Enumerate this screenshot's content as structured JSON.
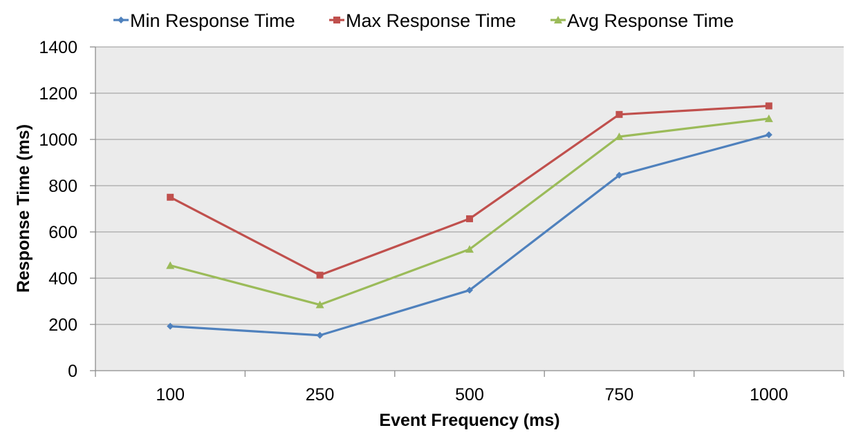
{
  "chart_data": {
    "type": "line",
    "title": "",
    "xlabel": "Event Frequency (ms)",
    "ylabel": "Response Time (ms)",
    "categories": [
      "100",
      "250",
      "500",
      "750",
      "1000"
    ],
    "ylim": [
      0,
      1400
    ],
    "yticks": [
      "0",
      "200",
      "400",
      "600",
      "800",
      "1000",
      "1200",
      "1400"
    ],
    "grid": "horizontal",
    "legend_position": "top",
    "plot_background": "#ebebeb",
    "series": [
      {
        "name": "Min Response Time",
        "color": "#4f81bd",
        "marker": "diamond",
        "values": [
          192,
          153,
          348,
          845,
          1020
        ]
      },
      {
        "name": "Max Response Time",
        "color": "#c0504d",
        "marker": "square",
        "values": [
          750,
          413,
          657,
          1108,
          1145
        ]
      },
      {
        "name": "Avg Response Time",
        "color": "#9bbb59",
        "marker": "triangle",
        "values": [
          455,
          285,
          525,
          1012,
          1090
        ]
      }
    ]
  }
}
